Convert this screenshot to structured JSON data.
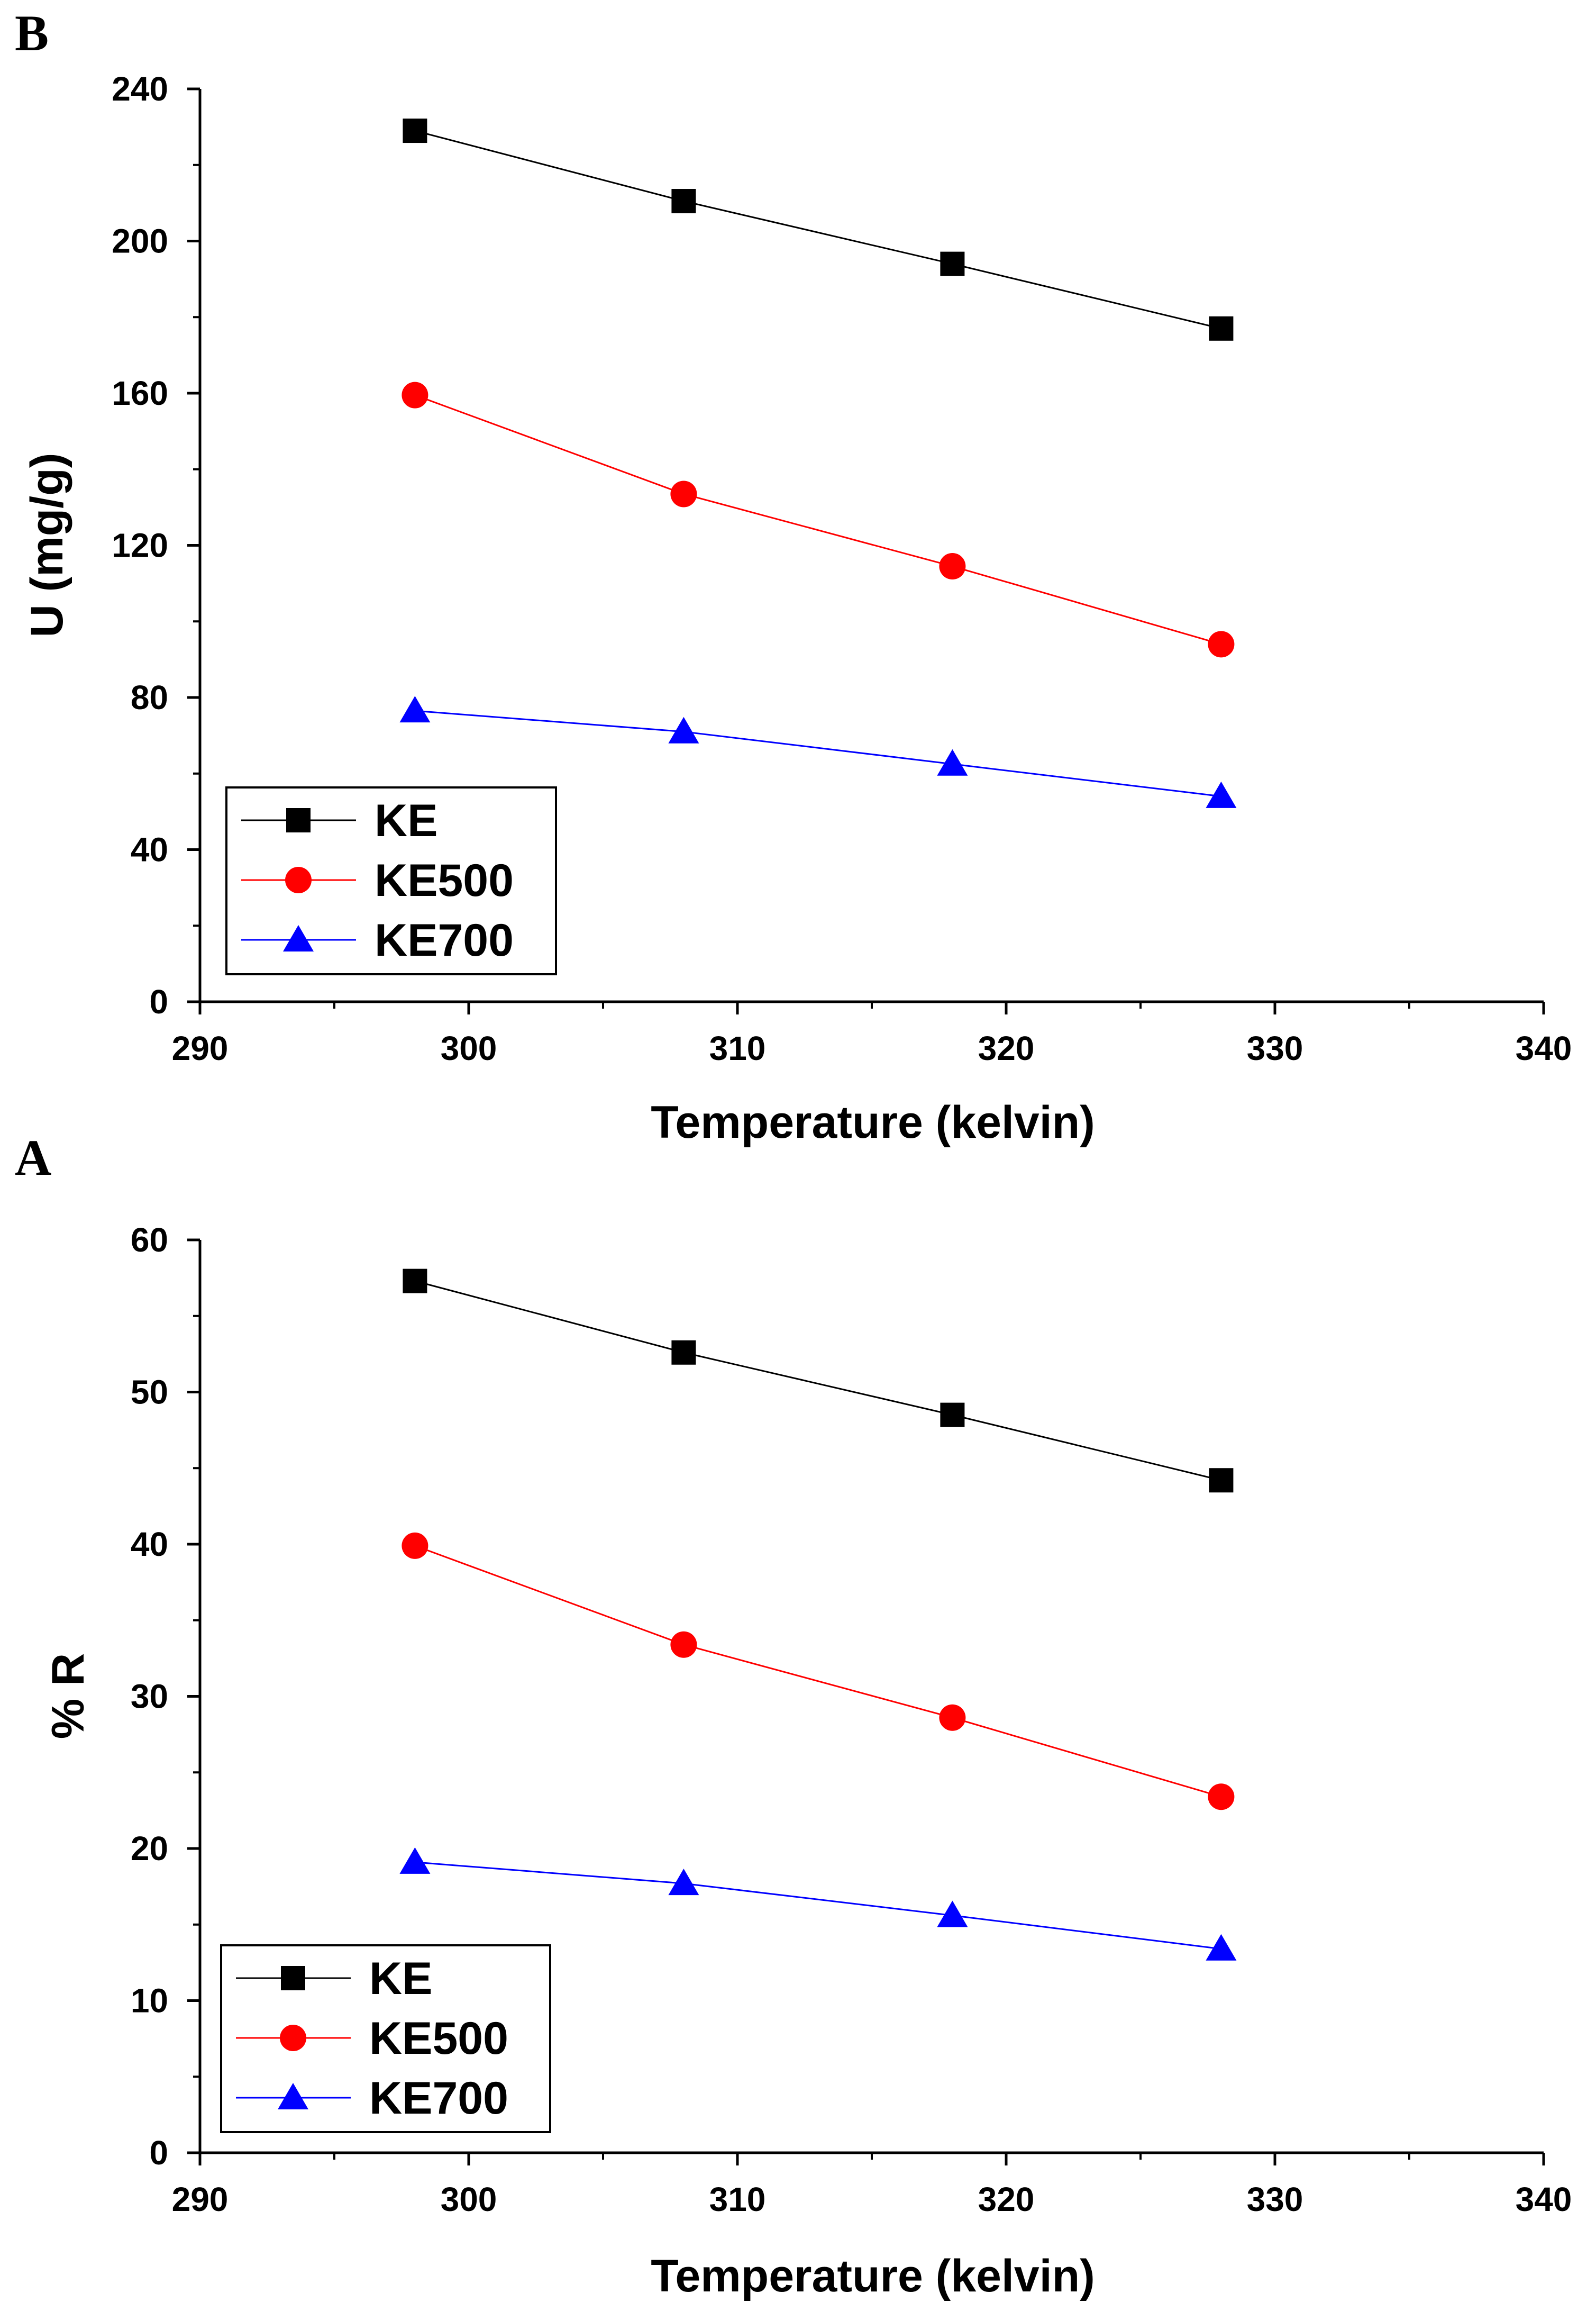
{
  "colors": {
    "KE": "#000000",
    "KE500": "#ff0000",
    "KE700": "#0000ff"
  },
  "chart_data": [
    {
      "panel": "B",
      "type": "line",
      "xlabel": "Temperature (kelvin)",
      "ylabel": "U (mg/g)",
      "xlim": [
        290,
        340
      ],
      "ylim": [
        0,
        240
      ],
      "xticks": [
        290,
        300,
        310,
        320,
        330,
        340
      ],
      "yticks": [
        0,
        40,
        80,
        120,
        160,
        200,
        240
      ],
      "x": [
        298,
        308,
        318,
        328
      ],
      "legend_position": "bottom-left",
      "series": [
        {
          "name": "KE",
          "marker": "square",
          "values": [
            229,
            210.5,
            194,
            177
          ]
        },
        {
          "name": "KE500",
          "marker": "circle",
          "values": [
            159.5,
            133.5,
            114.5,
            94
          ]
        },
        {
          "name": "KE700",
          "marker": "triangle",
          "values": [
            76.5,
            71,
            62.5,
            54
          ]
        }
      ]
    },
    {
      "panel": "A",
      "type": "line",
      "xlabel": "Temperature (kelvin)",
      "ylabel": "% R",
      "xlim": [
        290,
        340
      ],
      "ylim": [
        0,
        60
      ],
      "xticks": [
        290,
        300,
        310,
        320,
        330,
        340
      ],
      "yticks": [
        0,
        10,
        20,
        30,
        40,
        50,
        60
      ],
      "x": [
        298,
        308,
        318,
        328
      ],
      "legend_position": "bottom-left",
      "series": [
        {
          "name": "KE",
          "marker": "square",
          "values": [
            57.3,
            52.6,
            48.5,
            44.2
          ]
        },
        {
          "name": "KE500",
          "marker": "circle",
          "values": [
            39.9,
            33.4,
            28.6,
            23.4
          ]
        },
        {
          "name": "KE700",
          "marker": "triangle",
          "values": [
            19.1,
            17.7,
            15.6,
            13.4
          ]
        }
      ]
    }
  ]
}
